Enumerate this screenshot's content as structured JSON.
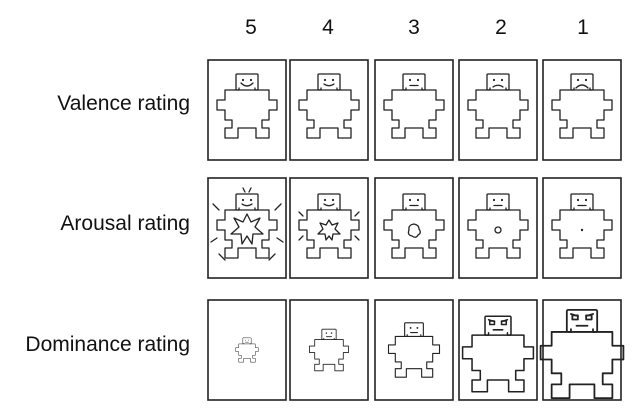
{
  "scale": {
    "columns": [
      "5",
      "4",
      "3",
      "2",
      "1"
    ],
    "rows": [
      {
        "label": "Valence rating",
        "figure": "manikin-valence",
        "levels": [
          "very-happy",
          "happy",
          "neutral",
          "unhappy",
          "very-unhappy"
        ]
      },
      {
        "label": "Arousal rating",
        "figure": "manikin-arousal",
        "levels": [
          "explosive",
          "excited",
          "moderate",
          "calm",
          "very-calm"
        ]
      },
      {
        "label": "Dominance rating",
        "figure": "manikin-dominance",
        "levels": [
          "smallest",
          "small",
          "medium",
          "large",
          "largest"
        ]
      }
    ]
  }
}
